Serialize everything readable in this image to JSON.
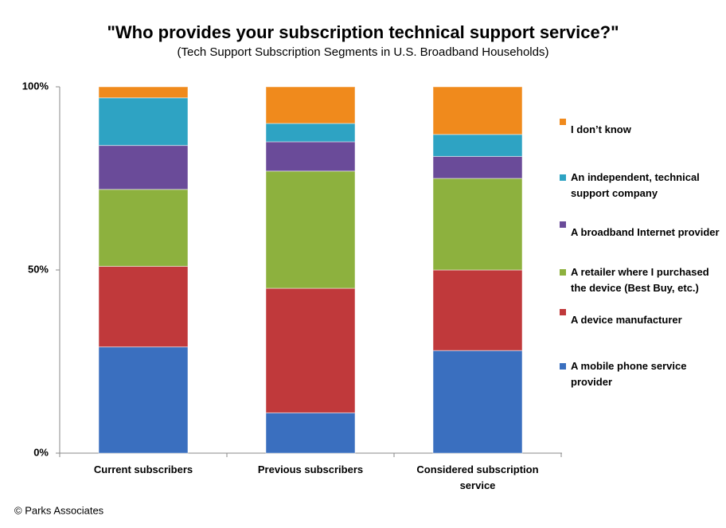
{
  "chart_data": {
    "type": "stacked_bar",
    "title": "\"Who provides your subscription technical support service?\"",
    "subtitle": "(Tech Support Subscription Segments in U.S. Broadband Households)",
    "categories": [
      "Current subscribers",
      "Previous subscribers",
      "Considered subscription service"
    ],
    "series": [
      {
        "name": "A mobile phone service provider",
        "color": "#3a6fbf",
        "values": [
          29,
          11,
          28
        ]
      },
      {
        "name": "A device manufacturer",
        "color": "#c0393b",
        "values": [
          22,
          34,
          22
        ]
      },
      {
        "name": "A retailer where I purchased the device (Best Buy, etc.)",
        "color": "#8db13e",
        "values": [
          21,
          32,
          25
        ]
      },
      {
        "name": "A broadband Internet provider",
        "color": "#6a4b99",
        "values": [
          12,
          8,
          6
        ]
      },
      {
        "name": "An independent, technical support company",
        "color": "#2ea3c3",
        "values": [
          13,
          5,
          6
        ]
      },
      {
        "name": "I don’t know",
        "color": "#f08a1c",
        "values": [
          3,
          10,
          13
        ]
      }
    ],
    "ylim": [
      0,
      100
    ],
    "yticks": [
      {
        "value": 0,
        "label": "0%"
      },
      {
        "value": 50,
        "label": "50%"
      },
      {
        "value": 100,
        "label": "100%"
      }
    ],
    "legend": "right",
    "source": "© Parks Associates"
  }
}
